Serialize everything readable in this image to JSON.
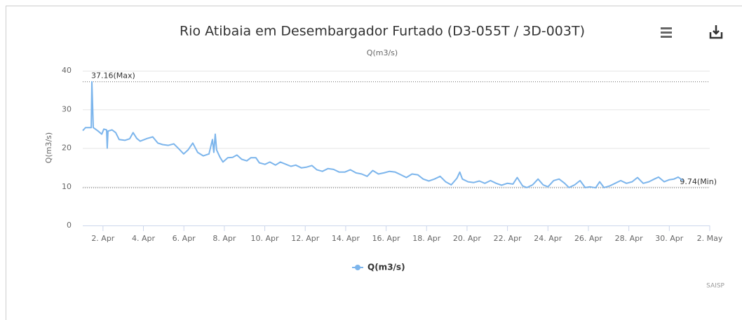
{
  "chart_data": {
    "type": "line",
    "title": "Rio Atibaia em Desembargador Furtado (D3-055T / 3D-003T)",
    "subtitle": "Q(m3/s)",
    "y_label": "Q(m3/s)",
    "credits": "SAISP",
    "legend_position": "bottom",
    "grid": true,
    "xlim": [
      1,
      32
    ],
    "ylim": [
      0,
      40
    ],
    "yticks": [
      0,
      10,
      20,
      30,
      40
    ],
    "xticks": [
      {
        "value": 2,
        "label": "2. Apr"
      },
      {
        "value": 4,
        "label": "4. Apr"
      },
      {
        "value": 6,
        "label": "6. Apr"
      },
      {
        "value": 8,
        "label": "8. Apr"
      },
      {
        "value": 10,
        "label": "10. Apr"
      },
      {
        "value": 12,
        "label": "12. Apr"
      },
      {
        "value": 14,
        "label": "14. Apr"
      },
      {
        "value": 16,
        "label": "16. Apr"
      },
      {
        "value": 18,
        "label": "18. Apr"
      },
      {
        "value": 20,
        "label": "20. Apr"
      },
      {
        "value": 22,
        "label": "22. Apr"
      },
      {
        "value": 24,
        "label": "24. Apr"
      },
      {
        "value": 26,
        "label": "26. Apr"
      },
      {
        "value": 28,
        "label": "28. Apr"
      },
      {
        "value": 30,
        "label": "30. Apr"
      },
      {
        "value": 32,
        "label": "2. May"
      }
    ],
    "annotations": [
      {
        "text": "37.16(Max)",
        "value": 37.16,
        "position": "left"
      },
      {
        "text": "9.74(Min)",
        "value": 9.74,
        "position": "right"
      }
    ],
    "x": [
      1.0,
      1.14,
      1.42,
      1.45,
      1.52,
      1.76,
      1.94,
      2.04,
      2.18,
      2.21,
      2.25,
      2.45,
      2.63,
      2.8,
      3.08,
      3.32,
      3.49,
      3.67,
      3.84,
      4.19,
      4.46,
      4.71,
      4.95,
      5.23,
      5.5,
      5.75,
      5.99,
      6.2,
      6.44,
      6.68,
      6.96,
      7.24,
      7.41,
      7.48,
      7.55,
      7.62,
      7.79,
      7.93,
      8.17,
      8.41,
      8.62,
      8.86,
      9.11,
      9.31,
      9.56,
      9.73,
      10.01,
      10.25,
      10.53,
      10.77,
      11.05,
      11.29,
      11.53,
      11.81,
      12.08,
      12.33,
      12.57,
      12.85,
      13.12,
      13.4,
      13.68,
      13.95,
      14.23,
      14.51,
      14.79,
      15.06,
      15.34,
      15.62,
      15.89,
      16.17,
      16.45,
      16.73,
      17.0,
      17.28,
      17.56,
      17.83,
      18.11,
      18.39,
      18.67,
      18.94,
      19.22,
      19.5,
      19.64,
      19.77,
      20.05,
      20.33,
      20.61,
      20.88,
      21.16,
      21.44,
      21.71,
      21.99,
      22.27,
      22.48,
      22.75,
      22.96,
      23.24,
      23.51,
      23.76,
      24.0,
      24.28,
      24.55,
      24.83,
      25.04,
      25.32,
      25.59,
      25.84,
      26.08,
      26.36,
      26.56,
      26.77,
      27.05,
      27.32,
      27.6,
      27.88,
      28.16,
      28.43,
      28.71,
      28.99,
      29.26,
      29.47,
      29.75,
      29.99,
      30.23,
      30.44,
      30.68
    ],
    "series": [
      {
        "name": "Q(m3/s)",
        "color": "#7cb5ec",
        "values": [
          24.5,
          25.3,
          25.3,
          37.16,
          25.3,
          24.4,
          23.6,
          24.9,
          24.7,
          20.0,
          24.4,
          24.7,
          24.0,
          22.2,
          22.0,
          22.4,
          24.0,
          22.5,
          21.8,
          22.5,
          22.9,
          21.3,
          20.9,
          20.7,
          21.1,
          19.8,
          18.5,
          19.5,
          21.3,
          18.9,
          18.0,
          18.5,
          22.2,
          18.9,
          23.6,
          19.5,
          17.6,
          16.4,
          17.5,
          17.6,
          18.2,
          17.1,
          16.7,
          17.5,
          17.5,
          16.2,
          15.8,
          16.4,
          15.6,
          16.4,
          15.8,
          15.3,
          15.6,
          14.9,
          15.1,
          15.5,
          14.4,
          14.0,
          14.7,
          14.5,
          13.8,
          13.8,
          14.4,
          13.6,
          13.3,
          12.7,
          14.2,
          13.3,
          13.6,
          14.0,
          13.8,
          13.1,
          12.4,
          13.3,
          13.1,
          12.0,
          11.5,
          12.0,
          12.7,
          11.3,
          10.5,
          12.2,
          13.8,
          12.0,
          11.3,
          11.1,
          11.5,
          10.9,
          11.6,
          10.9,
          10.4,
          10.9,
          10.7,
          12.4,
          10.2,
          9.8,
          10.5,
          12.0,
          10.5,
          10.0,
          11.6,
          12.0,
          10.9,
          9.8,
          10.5,
          11.6,
          9.8,
          10.0,
          9.74,
          11.3,
          9.8,
          10.2,
          10.9,
          11.6,
          10.9,
          11.3,
          12.4,
          10.9,
          11.3,
          12.0,
          12.5,
          11.3,
          11.8,
          12.0,
          12.5,
          11.6
        ]
      }
    ]
  }
}
